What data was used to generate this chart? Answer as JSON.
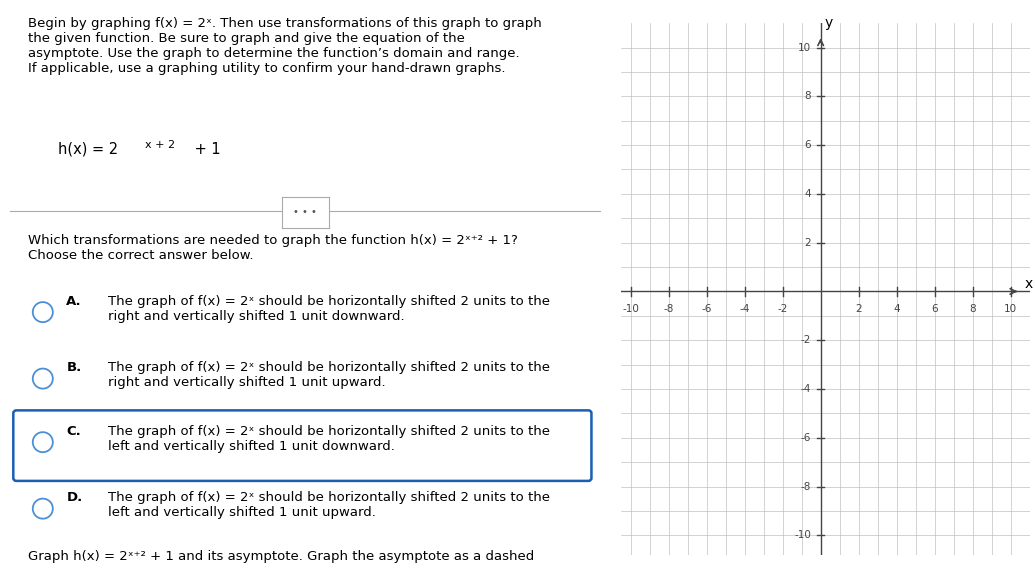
{
  "background_color": "#ffffff",
  "left_panel": {
    "title_lines": [
      "Begin by graphing f(x) = 2ˣ. Then use transformations of this graph to graph",
      "the given function. Be sure to graph and give the equation of the",
      "asymptote. Use the graph to determine the function’s domain and range.",
      "If applicable, use a graphing utility to confirm your hand-drawn graphs."
    ],
    "question_lines": [
      "Which transformations are needed to graph the function h(x) = 2ˣ⁺² + 1?",
      "Choose the correct answer below."
    ],
    "options": [
      {
        "label": "A.",
        "line1": "The graph of f(x) = 2ˣ should be horizontally shifted 2 units to the",
        "line2": "right and vertically shifted 1 unit downward.",
        "highlighted": false
      },
      {
        "label": "B.",
        "line1": "The graph of f(x) = 2ˣ should be horizontally shifted 2 units to the",
        "line2": "right and vertically shifted 1 unit upward.",
        "highlighted": false
      },
      {
        "label": "C.",
        "line1": "The graph of f(x) = 2ˣ should be horizontally shifted 2 units to the",
        "line2": "left and vertically shifted 1 unit downward.",
        "highlighted": true
      },
      {
        "label": "D.",
        "line1": "The graph of f(x) = 2ˣ should be horizontally shifted 2 units to the",
        "line2": "left and vertically shifted 1 unit upward.",
        "highlighted": false
      }
    ],
    "bottom_text": "Graph h(x) = 2ˣ⁺² + 1 and its asymptote. Graph the asymptote as a dashed",
    "highlight_color": "#1a5fb4",
    "radio_color": "#4a90d9",
    "text_color": "#000000",
    "font_size": 9.5
  },
  "right_panel": {
    "xlim": [
      -10,
      10
    ],
    "ylim": [
      -10,
      10
    ],
    "xticks": [
      -10,
      -8,
      -6,
      -4,
      -2,
      2,
      4,
      6,
      8,
      10
    ],
    "yticks": [
      -10,
      -8,
      -6,
      -4,
      -2,
      2,
      4,
      6,
      8,
      10
    ],
    "grid_color": "#c0c0c0",
    "axis_color": "#444444",
    "tick_label_color": "#444444",
    "bg_color": "#f0f0f0",
    "xlabel": "x",
    "ylabel": "y"
  }
}
